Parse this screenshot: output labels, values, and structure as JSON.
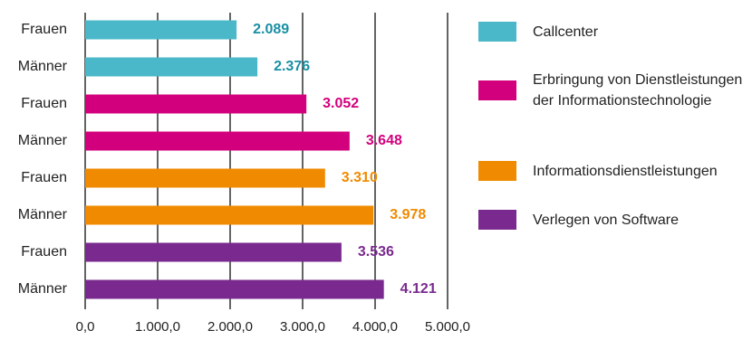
{
  "chart_data": {
    "type": "bar",
    "orientation": "horizontal",
    "categories": [
      "Frauen",
      "Männer",
      "Frauen",
      "Männer",
      "Frauen",
      "Männer",
      "Frauen",
      "Männer"
    ],
    "values": [
      2089,
      2376,
      3052,
      3648,
      3310,
      3978,
      3536,
      4121
    ],
    "value_labels": [
      "2.089",
      "2.376",
      "3.052",
      "3.648",
      "3.310",
      "3.978",
      "3.536",
      "4.121"
    ],
    "bar_series": [
      0,
      0,
      1,
      1,
      2,
      2,
      3,
      3
    ],
    "series": [
      {
        "name": "Callcenter",
        "color": "#4bb8c9"
      },
      {
        "name": "Erbringung von Dienstleistungen der Informationstechnologie",
        "color": "#d3007d"
      },
      {
        "name": "Informationsdienstleistungen",
        "color": "#f08a00"
      },
      {
        "name": "Verlegen von Software",
        "color": "#7a2a8e"
      }
    ],
    "label_colors": [
      "#1a8fa3",
      "#d3007d",
      "#f08a00",
      "#7a2a8e"
    ],
    "xlim": [
      0,
      5000
    ],
    "xticks": [
      0,
      1000,
      2000,
      3000,
      4000,
      5000
    ],
    "xtick_labels": [
      "0,0",
      "1.000,0",
      "2.000,0",
      "3.000,0",
      "4.000,0",
      "5.000,0"
    ],
    "grid": true,
    "legend_position": "right",
    "title": "",
    "xlabel": "",
    "ylabel": ""
  }
}
